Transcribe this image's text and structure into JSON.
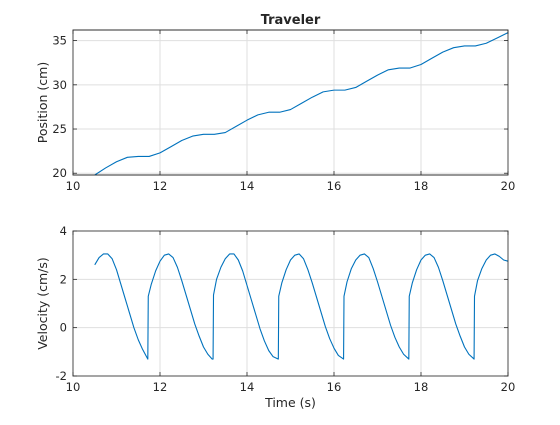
{
  "chart_data": [
    {
      "type": "line",
      "title": "Traveler",
      "xlabel": "",
      "ylabel": "Position (cm)",
      "xlim": [
        10,
        20
      ],
      "ylim": [
        19.8,
        36.2
      ],
      "xticks": [
        10,
        12,
        14,
        16,
        18,
        20
      ],
      "yticks": [
        20,
        25,
        30,
        35
      ],
      "grid": true,
      "series": [
        {
          "color": "#0072bd",
          "x": [
            10.5,
            10.75,
            11.0,
            11.25,
            11.5,
            11.75,
            12.0,
            12.25,
            12.5,
            12.75,
            13.0,
            13.25,
            13.5,
            13.75,
            14.0,
            14.25,
            14.5,
            14.75,
            15.0,
            15.25,
            15.5,
            15.75,
            16.0,
            16.25,
            16.5,
            16.75,
            17.0,
            17.25,
            17.5,
            17.75,
            18.0,
            18.25,
            18.5,
            18.75,
            19.0,
            19.25,
            19.5,
            19.75,
            20.0
          ],
          "y": [
            19.8,
            20.6,
            21.3,
            21.8,
            21.9,
            21.9,
            22.3,
            23.0,
            23.7,
            24.2,
            24.4,
            24.4,
            24.6,
            25.3,
            26.0,
            26.6,
            26.9,
            26.9,
            27.2,
            27.9,
            28.6,
            29.2,
            29.4,
            29.4,
            29.7,
            30.4,
            31.1,
            31.7,
            31.9,
            31.9,
            32.3,
            33.0,
            33.7,
            34.2,
            34.4,
            34.4,
            34.7,
            35.3,
            35.9
          ]
        }
      ]
    },
    {
      "type": "line",
      "title": "",
      "xlabel": "Time (s)",
      "ylabel": "Velocity (cm/s)",
      "xlim": [
        10,
        20
      ],
      "ylim": [
        -2,
        4
      ],
      "xticks": [
        10,
        12,
        14,
        16,
        18,
        20
      ],
      "yticks": [
        -2,
        0,
        2,
        4
      ],
      "grid": true,
      "series": [
        {
          "color": "#0072bd",
          "x": [
            10.5,
            10.6,
            10.7,
            10.8,
            10.9,
            11.0,
            11.1,
            11.2,
            11.3,
            11.4,
            11.5,
            11.6,
            11.72,
            11.73,
            11.8,
            11.9,
            12.0,
            12.1,
            12.2,
            12.3,
            12.4,
            12.5,
            12.6,
            12.7,
            12.8,
            12.9,
            13.0,
            13.1,
            13.2,
            13.22,
            13.23,
            13.3,
            13.4,
            13.5,
            13.6,
            13.7,
            13.8,
            13.9,
            14.0,
            14.1,
            14.2,
            14.3,
            14.4,
            14.5,
            14.6,
            14.72,
            14.73,
            14.8,
            14.9,
            15.0,
            15.1,
            15.2,
            15.3,
            15.4,
            15.5,
            15.6,
            15.7,
            15.8,
            15.9,
            16.0,
            16.1,
            16.22,
            16.23,
            16.3,
            16.4,
            16.5,
            16.6,
            16.7,
            16.8,
            16.9,
            17.0,
            17.1,
            17.2,
            17.3,
            17.4,
            17.5,
            17.6,
            17.72,
            17.73,
            17.8,
            17.9,
            18.0,
            18.1,
            18.2,
            18.3,
            18.4,
            18.5,
            18.6,
            18.7,
            18.8,
            18.9,
            19.0,
            19.1,
            19.22,
            19.23,
            19.3,
            19.4,
            19.5,
            19.6,
            19.7,
            19.8,
            19.9,
            20.0
          ],
          "y": [
            2.6,
            2.9,
            3.05,
            3.05,
            2.85,
            2.4,
            1.8,
            1.2,
            0.6,
            0.0,
            -0.5,
            -0.9,
            -1.3,
            1.3,
            1.8,
            2.35,
            2.75,
            3.0,
            3.05,
            2.9,
            2.5,
            1.95,
            1.35,
            0.75,
            0.15,
            -0.35,
            -0.8,
            -1.1,
            -1.3,
            -1.3,
            1.35,
            2.0,
            2.5,
            2.85,
            3.05,
            3.05,
            2.8,
            2.35,
            1.75,
            1.15,
            0.55,
            -0.05,
            -0.55,
            -0.95,
            -1.2,
            -1.3,
            1.3,
            1.85,
            2.4,
            2.8,
            3.0,
            3.05,
            2.85,
            2.4,
            1.85,
            1.25,
            0.65,
            0.05,
            -0.45,
            -0.85,
            -1.15,
            -1.3,
            1.3,
            1.9,
            2.45,
            2.8,
            3.0,
            3.05,
            2.9,
            2.45,
            1.9,
            1.3,
            0.7,
            0.1,
            -0.4,
            -0.8,
            -1.1,
            -1.3,
            1.3,
            1.85,
            2.4,
            2.8,
            3.0,
            3.05,
            2.9,
            2.5,
            1.95,
            1.35,
            0.75,
            0.15,
            -0.35,
            -0.8,
            -1.1,
            -1.3,
            1.3,
            1.95,
            2.45,
            2.8,
            3.0,
            3.05,
            2.95,
            2.8,
            2.75
          ]
        }
      ]
    }
  ]
}
